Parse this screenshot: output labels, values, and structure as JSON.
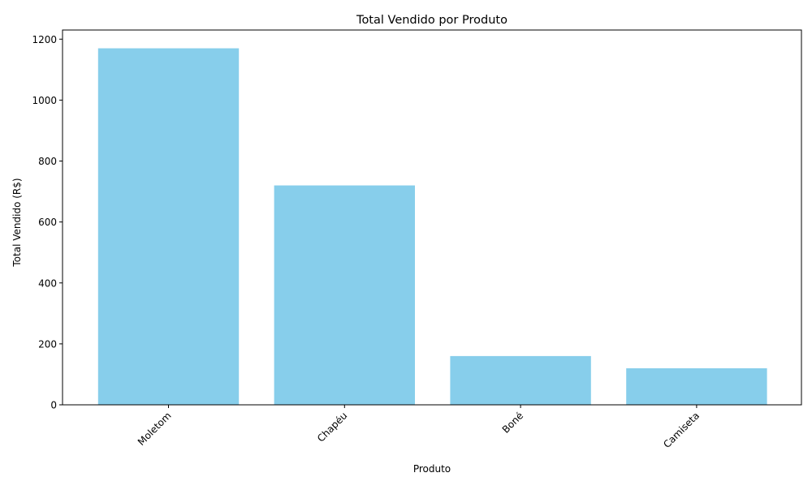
{
  "chart_data": {
    "type": "bar",
    "title": "Total Vendido por Produto",
    "xlabel": "Produto",
    "ylabel": "Total Vendido (R$)",
    "categories": [
      "Moletom",
      "Chapéu",
      "Boné",
      "Camiseta"
    ],
    "values": [
      1170,
      720,
      160,
      120
    ],
    "ylim": [
      0,
      1230
    ],
    "yticks": [
      0,
      200,
      400,
      600,
      800,
      1000,
      1200
    ],
    "bar_color": "#87ceeb",
    "grid": false,
    "legend": "none",
    "xtick_rotation_deg": 45
  }
}
